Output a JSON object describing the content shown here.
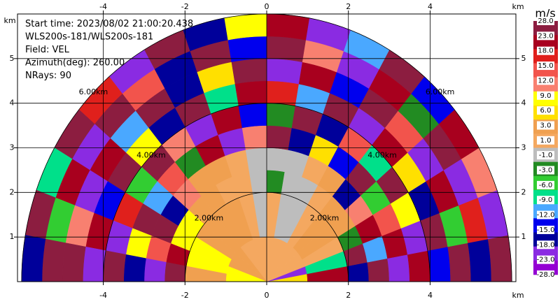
{
  "chart_data": {
    "type": "polar-heatmap",
    "annotations": [
      "Start time: 2023/08/02 21:00:20.438",
      "WLS200s-181/WLS200s-181",
      "Field: VEL",
      "Azimuth(deg): 260.00",
      "NRays: 90"
    ],
    "x_unit": "km",
    "y_unit": "km",
    "xlim": [
      -6.1,
      6.1
    ],
    "ylim": [
      0,
      6
    ],
    "xticks": [
      -4,
      -2,
      0,
      2,
      4
    ],
    "yticks": [
      1,
      2,
      3,
      4,
      5
    ],
    "grid": true,
    "rings": [
      {
        "value": 2,
        "label": "2.00km"
      },
      {
        "value": 4,
        "label": "4.00km"
      },
      {
        "value": 6,
        "label": "6.00km"
      }
    ],
    "range_edges": [
      0,
      1,
      2,
      2.5,
      3,
      3.5,
      4,
      4.5,
      5,
      5.5,
      6
    ],
    "angle_edges": [
      0,
      10,
      20,
      30,
      40,
      50,
      60,
      70,
      80,
      90,
      100,
      110,
      120,
      130,
      140,
      150,
      160,
      170,
      180
    ],
    "values": [
      [
        5,
        -25,
        0,
        0,
        -1,
        0,
        0,
        0,
        0,
        0,
        0,
        0,
        0,
        2,
        2,
        2,
        7,
        7
      ],
      [
        20,
        -10,
        0,
        2,
        2,
        0,
        -2,
        -2,
        0,
        -2,
        0,
        2,
        2,
        2,
        2,
        7,
        7,
        2
      ],
      [
        -20,
        25,
        -5,
        2,
        2,
        0,
        -2,
        -2,
        -4,
        -2,
        0,
        0,
        2,
        2,
        7,
        7,
        20,
        25
      ],
      [
        25,
        -15,
        20,
        10,
        -20,
        2,
        0,
        -2,
        -2,
        -2,
        0,
        2,
        2,
        10,
        -20,
        25,
        13,
        -25
      ],
      [
        -25,
        20,
        13,
        -7,
        25,
        -16,
        4,
        -20,
        25,
        10,
        -25,
        20,
        -4,
        13,
        -13,
        25,
        7,
        -20
      ],
      [
        20,
        -25,
        7,
        25,
        -10,
        13,
        -20,
        25,
        -4,
        -16,
        20,
        -25,
        10,
        25,
        -7,
        16,
        -25,
        25
      ],
      [
        -16,
        25,
        -20,
        4,
        20,
        -25,
        25,
        -13,
        16,
        20,
        -10,
        25,
        -20,
        7,
        25,
        -16,
        20,
        -25
      ],
      [
        25,
        -7,
        20,
        -25,
        13,
        25,
        -16,
        20,
        -25,
        25,
        4,
        -20,
        25,
        -13,
        20,
        -25,
        10,
        25
      ],
      [
        -20,
        16,
        -25,
        25,
        -4,
        20,
        -25,
        10,
        25,
        -16,
        25,
        -20,
        13,
        25,
        -25,
        20,
        -7,
        25
      ],
      [
        25,
        -25,
        10,
        20,
        -16,
        25,
        -13,
        -25,
        20,
        7,
        -20,
        25,
        -25,
        16,
        25,
        -10,
        25,
        -20
      ]
    ],
    "colorbar": {
      "label": "m/s",
      "ticks": [
        {
          "value": 28,
          "label": "28.0"
        },
        {
          "value": 23,
          "label": "23.0"
        },
        {
          "value": 18,
          "label": "18.0"
        },
        {
          "value": 15,
          "label": "15.0"
        },
        {
          "value": 12,
          "label": "12.0"
        },
        {
          "value": 9,
          "label": "9.0"
        },
        {
          "value": 6,
          "label": "6.0"
        },
        {
          "value": 3,
          "label": "3.0"
        },
        {
          "value": 1,
          "label": "1.0"
        },
        {
          "value": -1,
          "label": "-1.0"
        },
        {
          "value": -3,
          "label": "-3.0"
        },
        {
          "value": -6,
          "label": "-6.0"
        },
        {
          "value": -9,
          "label": "-9.0"
        },
        {
          "value": -12,
          "label": "-12.0"
        },
        {
          "value": -15,
          "label": "-15.0"
        },
        {
          "value": -18,
          "label": "-18.0"
        },
        {
          "value": -23,
          "label": "-23.0"
        },
        {
          "value": -28,
          "label": "-28.0"
        }
      ],
      "colors": [
        "#8c1d40",
        "#a8001e",
        "#e0201c",
        "#f2544c",
        "#f88070",
        "#ffff00",
        "#ffe000",
        "#f0a050",
        "#f4a860",
        "#bdbdbd",
        "#228b22",
        "#32cd32",
        "#00e08a",
        "#4aa8ff",
        "#0000ee",
        "#00009a",
        "#8a2be2",
        "#9400d3"
      ]
    }
  }
}
